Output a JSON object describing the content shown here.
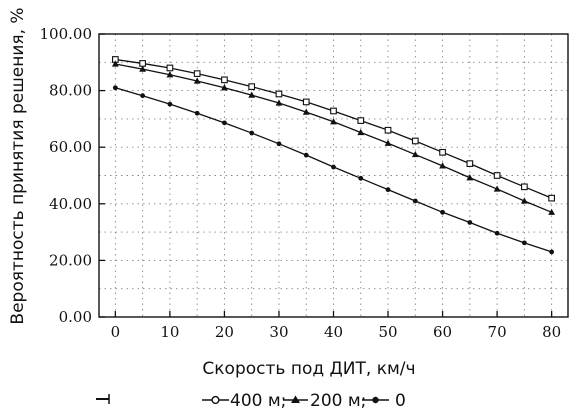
{
  "chart_data": {
    "type": "line",
    "xlabel": "Скорость под ДИТ, км/ч",
    "ylabel": "Вероятность принятия решения, %",
    "xlim": [
      -3,
      83
    ],
    "ylim": [
      0,
      100
    ],
    "x_ticks": [
      "0",
      "10",
      "20",
      "30",
      "40",
      "50",
      "60",
      "70",
      "80"
    ],
    "x_tick_values": [
      0,
      10,
      20,
      30,
      40,
      50,
      60,
      70,
      80
    ],
    "y_ticks": [
      "0.00",
      "20.00",
      "40.00",
      "60.00",
      "80.00",
      "100.00"
    ],
    "y_tick_values": [
      0,
      20,
      40,
      60,
      80,
      100
    ],
    "grid": true,
    "legend_position": "bottom",
    "legend": {
      "items": [
        "400 м;",
        "200 м;",
        "0"
      ]
    },
    "series": [
      {
        "name": "400 м",
        "marker": "square",
        "x": [
          0,
          5,
          10,
          15,
          20,
          25,
          30,
          35,
          40,
          45,
          50,
          55,
          60,
          65,
          70,
          75,
          80
        ],
        "y": [
          91.0,
          89.6,
          88.0,
          86.0,
          83.8,
          81.4,
          78.8,
          76.0,
          72.8,
          69.4,
          66.0,
          62.2,
          58.2,
          54.2,
          50.0,
          46.0,
          42.0
        ]
      },
      {
        "name": "200 м",
        "marker": "triangle",
        "x": [
          0,
          5,
          10,
          15,
          20,
          25,
          30,
          35,
          40,
          45,
          50,
          55,
          60,
          65,
          70,
          75,
          80
        ],
        "y": [
          89.4,
          87.6,
          85.6,
          83.4,
          81.0,
          78.4,
          75.6,
          72.4,
          69.0,
          65.2,
          61.4,
          57.4,
          53.4,
          49.2,
          45.2,
          41.0,
          37.0
        ]
      },
      {
        "name": "0",
        "marker": "circle",
        "x": [
          0,
          5,
          10,
          15,
          20,
          25,
          30,
          35,
          40,
          45,
          50,
          55,
          60,
          65,
          70,
          75,
          80
        ],
        "y": [
          81.0,
          78.2,
          75.2,
          72.0,
          68.6,
          65.0,
          61.2,
          57.2,
          53.0,
          49.0,
          45.0,
          41.0,
          37.0,
          33.4,
          29.6,
          26.2,
          23.0
        ]
      }
    ]
  }
}
